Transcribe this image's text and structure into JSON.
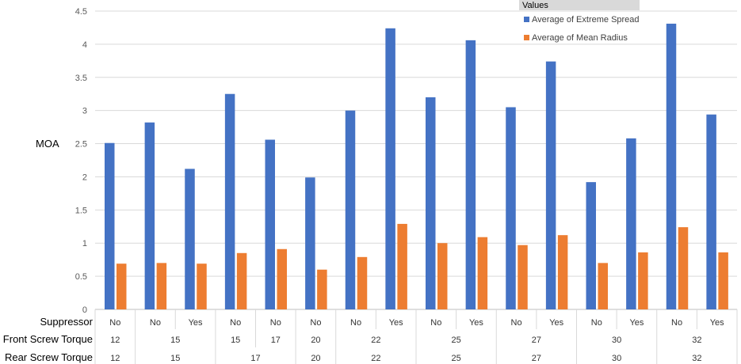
{
  "chart_data": {
    "type": "bar",
    "ylabel": "MOA",
    "ylim": [
      0,
      4.5
    ],
    "yticks": [
      0,
      0.5,
      1,
      1.5,
      2,
      2.5,
      3,
      3.5,
      4,
      4.5
    ],
    "ytick_labels": [
      "0",
      "0.5",
      "1",
      "1.5",
      "2",
      "2.5",
      "3",
      "3.5",
      "4",
      "4.5"
    ],
    "grid": true,
    "legend_title": "Values",
    "legend_position": "top-right",
    "series": [
      {
        "name": "Average of Extreme Spread",
        "color": "#4472C4",
        "values": [
          2.51,
          2.82,
          2.12,
          3.25,
          2.56,
          1.99,
          3.0,
          4.24,
          3.2,
          4.06,
          3.05,
          3.74,
          1.92,
          2.58,
          4.31,
          2.94
        ]
      },
      {
        "name": "Average of Mean Radius",
        "color": "#ED7D31",
        "values": [
          0.69,
          0.7,
          0.69,
          0.85,
          0.91,
          0.6,
          0.79,
          1.29,
          1.0,
          1.09,
          0.97,
          1.12,
          0.7,
          0.86,
          1.24,
          0.86
        ]
      }
    ],
    "axis_levels": [
      {
        "label": "Suppressor",
        "groups": [
          {
            "label": "No",
            "span": 1
          },
          {
            "label": "No",
            "span": 1
          },
          {
            "label": "Yes",
            "span": 1
          },
          {
            "label": "No",
            "span": 1
          },
          {
            "label": "No",
            "span": 1
          },
          {
            "label": "No",
            "span": 1
          },
          {
            "label": "No",
            "span": 1
          },
          {
            "label": "Yes",
            "span": 1
          },
          {
            "label": "No",
            "span": 1
          },
          {
            "label": "Yes",
            "span": 1
          },
          {
            "label": "No",
            "span": 1
          },
          {
            "label": "Yes",
            "span": 1
          },
          {
            "label": "No",
            "span": 1
          },
          {
            "label": "Yes",
            "span": 1
          },
          {
            "label": "No",
            "span": 1
          },
          {
            "label": "Yes",
            "span": 1
          }
        ]
      },
      {
        "label": "Front Screw Torque",
        "groups": [
          {
            "label": "12",
            "span": 1
          },
          {
            "label": "15",
            "span": 2
          },
          {
            "label": "15",
            "span": 1
          },
          {
            "label": "17",
            "span": 1
          },
          {
            "label": "20",
            "span": 1
          },
          {
            "label": "22",
            "span": 2
          },
          {
            "label": "25",
            "span": 2
          },
          {
            "label": "27",
            "span": 2
          },
          {
            "label": "30",
            "span": 2
          },
          {
            "label": "32",
            "span": 2
          }
        ]
      },
      {
        "label": "Rear Screw Torque",
        "groups": [
          {
            "label": "12",
            "span": 1
          },
          {
            "label": "15",
            "span": 2
          },
          {
            "label": "17",
            "span": 2
          },
          {
            "label": "20",
            "span": 1
          },
          {
            "label": "22",
            "span": 2
          },
          {
            "label": "25",
            "span": 2
          },
          {
            "label": "27",
            "span": 2
          },
          {
            "label": "30",
            "span": 2
          },
          {
            "label": "32",
            "span": 2
          }
        ]
      }
    ]
  }
}
